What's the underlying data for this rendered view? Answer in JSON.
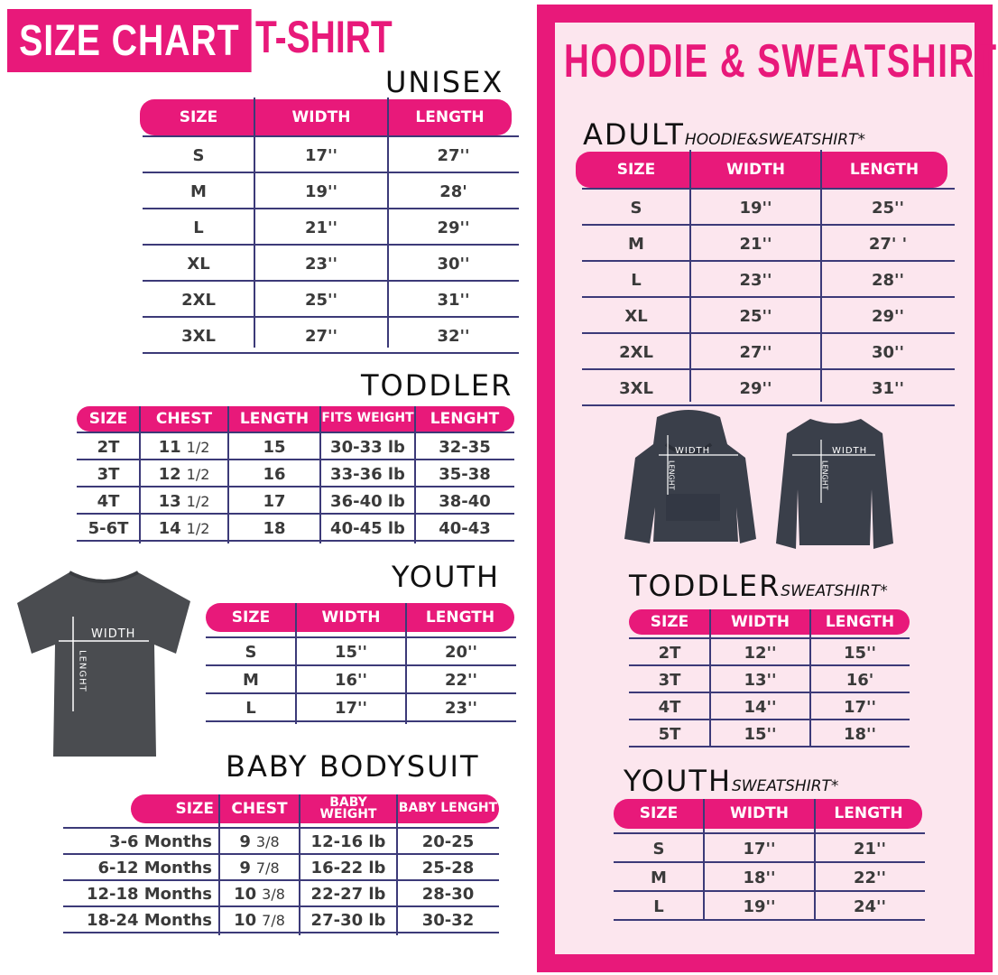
{
  "header": {
    "title": "SIZE CHART",
    "product": "T-SHIRT"
  },
  "colors": {
    "accent": "#e8197a",
    "panel_bg": "#fce6ee",
    "rule": "#3c3a78",
    "garment": "#45484d"
  },
  "tshirt": {
    "unisex": {
      "label": "UNISEX",
      "headers": [
        "SIZE",
        "WIDTH",
        "LENGTH"
      ],
      "rows": [
        [
          "S",
          "17''",
          "27''"
        ],
        [
          "M",
          "19''",
          "28'"
        ],
        [
          "L",
          "21''",
          "29''"
        ],
        [
          "XL",
          "23''",
          "30''"
        ],
        [
          "2XL",
          "25''",
          "31''"
        ],
        [
          "3XL",
          "27''",
          "32''"
        ]
      ]
    },
    "toddler": {
      "label": "TODDLER",
      "headers": [
        "SIZE",
        "CHEST",
        "LENGTH",
        "FITS WEIGHT",
        "LENGHT"
      ],
      "rows": [
        [
          "2T",
          {
            "main": "11",
            "frac": "1/2"
          },
          "15",
          "30-33 lb",
          "32-35"
        ],
        [
          "3T",
          {
            "main": "12",
            "frac": "1/2"
          },
          "16",
          "33-36 lb",
          "35-38"
        ],
        [
          "4T",
          {
            "main": "13",
            "frac": "1/2"
          },
          "17",
          "36-40 lb",
          "38-40"
        ],
        [
          "5-6T",
          {
            "main": "14",
            "frac": "1/2"
          },
          "18",
          "40-45 lb",
          "40-43"
        ]
      ]
    },
    "youth": {
      "label": "YOUTH",
      "headers": [
        "SIZE",
        "WIDTH",
        "LENGTH"
      ],
      "rows": [
        [
          "S",
          "15''",
          "20''"
        ],
        [
          "M",
          "16''",
          "22''"
        ],
        [
          "L",
          "17''",
          "23''"
        ]
      ]
    },
    "baby": {
      "label": "BABY BODYSUIT",
      "headers": [
        "SIZE",
        "CHEST",
        "BABY WEIGHT",
        "BABY LENGHT"
      ],
      "rows": [
        [
          "3-6 Months",
          {
            "main": "9",
            "frac": "3/8"
          },
          "12-16 lb",
          "20-25"
        ],
        [
          "6-12 Months",
          {
            "main": "9",
            "frac": "7/8"
          },
          "16-22 lb",
          "25-28"
        ],
        [
          "12-18 Months",
          {
            "main": "10",
            "frac": "3/8"
          },
          "22-27 lb",
          "28-30"
        ],
        [
          "18-24 Months",
          {
            "main": "10",
            "frac": "7/8"
          },
          "27-30 lb",
          "30-32"
        ]
      ]
    },
    "image": {
      "width_label": "WIDTH",
      "length_label": "LENGHT"
    }
  },
  "hoodie": {
    "title": "HOODIE & SWEATSHIRT",
    "adult": {
      "label": "ADULT",
      "sub": "HOODIE&SWEATSHIRT*",
      "headers": [
        "SIZE",
        "WIDTH",
        "LENGTH"
      ],
      "rows": [
        [
          "S",
          "19''",
          "25''"
        ],
        [
          "M",
          "21''",
          "27' '"
        ],
        [
          "L",
          "23''",
          "28''"
        ],
        [
          "XL",
          "25''",
          "29''"
        ],
        [
          "2XL",
          "27''",
          "30''"
        ],
        [
          "3XL",
          "29''",
          "31''"
        ]
      ]
    },
    "toddler": {
      "label": "TODDLER",
      "sub": "SWEATSHIRT*",
      "headers": [
        "SIZE",
        "WIDTH",
        "LENGTH"
      ],
      "rows": [
        [
          "2T",
          "12''",
          "15''"
        ],
        [
          "3T",
          "13''",
          "16'"
        ],
        [
          "4T",
          "14''",
          "17''"
        ],
        [
          "5T",
          "15''",
          "18''"
        ]
      ]
    },
    "youth": {
      "label": "YOUTH",
      "sub": "SWEATSHIRT*",
      "headers": [
        "SIZE",
        "WIDTH",
        "LENGTH"
      ],
      "rows": [
        [
          "S",
          "17''",
          "21''"
        ],
        [
          "M",
          "18''",
          "22''"
        ],
        [
          "L",
          "19''",
          "24''"
        ]
      ]
    },
    "image": {
      "width_label": "WIDTH",
      "length_label": "LENGHT"
    }
  }
}
